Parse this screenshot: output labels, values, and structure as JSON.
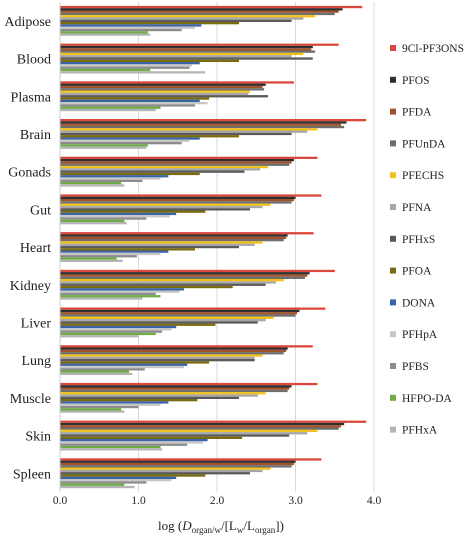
{
  "chart_data": {
    "type": "bar",
    "orientation": "horizontal",
    "xlabel": "log (D_organ/w/[L_w/L_organ])",
    "xlabel_parts": {
      "prefix": "log (",
      "d": "D",
      "d_sub": "organ/w",
      "mid": "/[L",
      "w_sub": "w",
      "slash": "/L",
      "organ_sub": "organ",
      "suffix": "])"
    },
    "xlim": [
      0,
      4.0
    ],
    "xticks": [
      "0.0",
      "1.0",
      "2.0",
      "3.0",
      "4.0"
    ],
    "grid": true,
    "legend_position": "right",
    "categories": [
      "Adipose",
      "Blood",
      "Plasma",
      "Brain",
      "Gonads",
      "Gut",
      "Heart",
      "Kidney",
      "Liver",
      "Lung",
      "Muscle",
      "Skin",
      "Spleen"
    ],
    "series": [
      {
        "name": "9Cl-PF3ONS",
        "color": "#d9483b",
        "values": [
          3.85,
          3.55,
          2.98,
          3.9,
          3.28,
          3.33,
          3.23,
          3.5,
          3.38,
          3.22,
          3.28,
          3.9,
          3.33
        ]
      },
      {
        "name": "PFOS",
        "color": "#2f2f2f",
        "values": [
          3.6,
          3.22,
          2.62,
          3.65,
          2.98,
          3.0,
          2.9,
          3.18,
          3.05,
          2.9,
          2.95,
          3.62,
          3.0
        ]
      },
      {
        "name": "PFDA",
        "color": "#a0522d",
        "values": [
          3.55,
          3.2,
          2.58,
          3.58,
          2.95,
          2.98,
          2.88,
          3.15,
          3.02,
          2.88,
          2.92,
          3.58,
          2.98
        ]
      },
      {
        "name": "PFUnDA",
        "color": "#6e6e6e",
        "values": [
          3.5,
          3.25,
          2.6,
          3.62,
          2.92,
          2.95,
          2.85,
          3.12,
          3.0,
          2.85,
          2.9,
          3.55,
          2.95
        ]
      },
      {
        "name": "PFECHS",
        "color": "#f2c21b",
        "values": [
          3.25,
          3.1,
          2.42,
          3.28,
          2.65,
          2.68,
          2.58,
          2.85,
          2.72,
          2.58,
          2.62,
          3.28,
          2.68
        ]
      },
      {
        "name": "PFNA",
        "color": "#a6a6a6",
        "values": [
          3.1,
          2.95,
          2.4,
          3.15,
          2.55,
          2.58,
          2.48,
          2.75,
          2.62,
          2.48,
          2.52,
          3.15,
          2.58
        ]
      },
      {
        "name": "PFHxS",
        "color": "#5a5a5a",
        "values": [
          2.95,
          3.22,
          2.65,
          2.95,
          2.35,
          2.42,
          2.28,
          2.62,
          2.52,
          2.48,
          2.28,
          2.92,
          2.42
        ]
      },
      {
        "name": "PFOA",
        "color": "#7a6a10",
        "values": [
          2.28,
          2.28,
          1.9,
          2.28,
          1.78,
          1.85,
          1.72,
          2.2,
          1.98,
          1.9,
          1.75,
          2.32,
          1.85
        ]
      },
      {
        "name": "DONA",
        "color": "#3a64a8",
        "values": [
          1.8,
          1.78,
          1.78,
          1.78,
          1.38,
          1.48,
          1.38,
          1.58,
          1.48,
          1.62,
          1.38,
          1.88,
          1.48
        ]
      },
      {
        "name": "PFHpA",
        "color": "#c7c7c7",
        "values": [
          1.72,
          1.68,
          1.88,
          1.65,
          1.28,
          1.4,
          1.28,
          1.52,
          1.42,
          1.58,
          1.28,
          1.82,
          1.42
        ]
      },
      {
        "name": "PFBS",
        "color": "#8c8c8c",
        "values": [
          1.55,
          1.65,
          1.72,
          1.55,
          1.05,
          1.1,
          0.98,
          1.22,
          1.3,
          1.08,
          1.0,
          1.62,
          1.1
        ]
      },
      {
        "name": "HFPO-DA",
        "color": "#70ad47",
        "values": [
          1.12,
          1.15,
          1.28,
          1.12,
          0.78,
          0.82,
          0.72,
          1.28,
          1.22,
          0.88,
          0.78,
          1.28,
          0.82
        ]
      },
      {
        "name": "PFHxA",
        "color": "#b5b5b5",
        "values": [
          1.15,
          1.85,
          1.22,
          1.1,
          0.82,
          0.85,
          0.8,
          1.05,
          1.0,
          0.92,
          0.82,
          1.3,
          0.95
        ]
      }
    ]
  }
}
